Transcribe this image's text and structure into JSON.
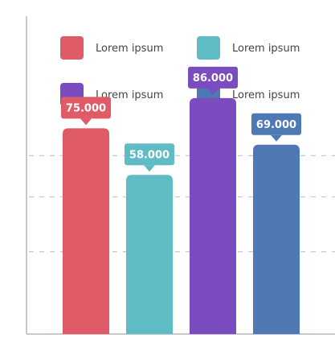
{
  "chart_data": {
    "type": "bar",
    "title": "",
    "xlabel": "",
    "ylabel": "",
    "ylim": [
      0,
      110
    ],
    "grid": true,
    "legend_placement": "top",
    "series": [
      {
        "name": "Lorem ipsum",
        "value": 75,
        "value_label": "75.000",
        "color": "#df5b68"
      },
      {
        "name": "Lorem ipsum",
        "value": 58,
        "value_label": "58.000",
        "color": "#5fbcc4"
      },
      {
        "name": "Lorem ipsum",
        "value": 86,
        "value_label": "86.000",
        "color": "#7b4bc0"
      },
      {
        "name": "Lorem ipsum",
        "value": 69,
        "value_label": "69.000",
        "color": "#4f79b5"
      }
    ],
    "gridlines": [
      30,
      50,
      65
    ]
  }
}
